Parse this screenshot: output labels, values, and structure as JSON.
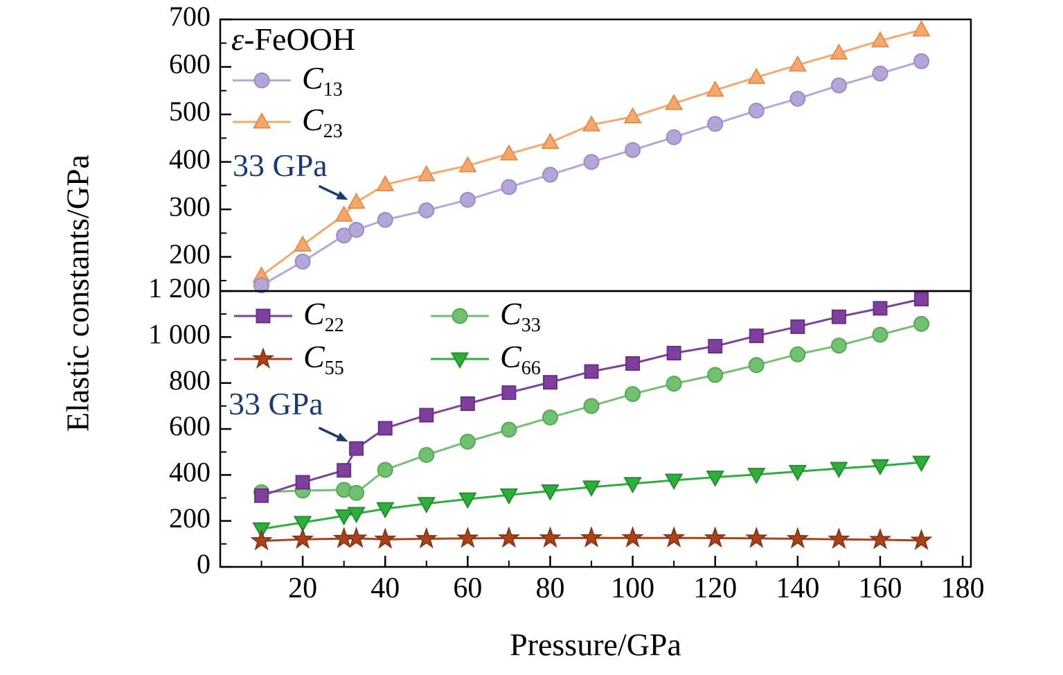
{
  "ylabel": "Elastic constants/GPa",
  "xlabel": "Pressure/GPa",
  "chart_data": [
    {
      "type": "line",
      "panel": "top",
      "title_sym": "ε",
      "title_rest": "-FeOOH",
      "ylim": [
        128,
        700
      ],
      "yticks": [
        200,
        300,
        400,
        500,
        600,
        700
      ],
      "ytick_labels": [
        "200",
        "300",
        "400",
        "500",
        "600",
        "700"
      ],
      "yticks_minor": [
        150,
        250,
        350,
        450,
        550,
        650
      ],
      "x": [
        10,
        20,
        30,
        33,
        40,
        50,
        60,
        70,
        80,
        90,
        100,
        110,
        120,
        130,
        140,
        150,
        160,
        170
      ],
      "series": [
        {
          "name": "C13",
          "sym": "C",
          "sub": "13",
          "marker": "circle",
          "color": "#b4a6d8",
          "edge": "#9b8ac6",
          "values": [
            140,
            190,
            245,
            257,
            278,
            298,
            320,
            347,
            373,
            400,
            425,
            452,
            480,
            508,
            533,
            561,
            586,
            612
          ]
        },
        {
          "name": "C23",
          "sym": "C",
          "sub": "23",
          "marker": "triangle-up",
          "color": "#f6a76e",
          "edge": "#e28f4e",
          "values": [
            160,
            225,
            288,
            315,
            352,
            373,
            392,
            417,
            441,
            478,
            495,
            523,
            551,
            578,
            604,
            629,
            655,
            678
          ]
        }
      ],
      "annotation": {
        "text": "33 GPa",
        "x": 33,
        "y": 320,
        "color": "#1c3a6e"
      }
    },
    {
      "type": "line",
      "panel": "bottom",
      "ylim": [
        0,
        1200
      ],
      "yticks": [
        0,
        200,
        400,
        600,
        800,
        1000,
        1200
      ],
      "ytick_labels": [
        "0",
        "200",
        "400",
        "600",
        "800",
        "1 000",
        "1 200"
      ],
      "yticks_minor": [
        100,
        300,
        500,
        700,
        900,
        1100
      ],
      "x": [
        10,
        20,
        30,
        33,
        40,
        50,
        60,
        70,
        80,
        90,
        100,
        110,
        120,
        130,
        140,
        150,
        160,
        170
      ],
      "xticks": [
        20,
        40,
        60,
        80,
        100,
        120,
        140,
        160,
        180
      ],
      "xtick_labels": [
        "20",
        "40",
        "60",
        "80",
        "100",
        "120",
        "140",
        "160",
        "180"
      ],
      "xticks_minor": [
        10,
        30,
        50,
        70,
        90,
        110,
        130,
        150,
        170
      ],
      "series": [
        {
          "name": "C22",
          "sym": "C",
          "sub": "22",
          "marker": "square",
          "color": "#7e3f9d",
          "edge": "#6a2f87",
          "values": [
            310,
            368,
            420,
            515,
            603,
            660,
            710,
            758,
            803,
            850,
            885,
            930,
            960,
            1005,
            1045,
            1088,
            1125,
            1165
          ]
        },
        {
          "name": "C33",
          "sym": "C",
          "sub": "33",
          "marker": "circle",
          "color": "#72c172",
          "edge": "#57a657",
          "values": [
            325,
            332,
            335,
            322,
            422,
            487,
            545,
            597,
            650,
            700,
            752,
            797,
            835,
            878,
            925,
            963,
            1010,
            1057
          ]
        },
        {
          "name": "C55",
          "sym": "C",
          "sub": "55",
          "marker": "star",
          "color": "#a8431d",
          "edge": "#8a3413",
          "values": [
            113,
            120,
            123,
            124,
            120,
            122,
            124,
            125,
            125,
            126,
            126,
            126,
            125,
            124,
            122,
            120,
            118,
            115
          ]
        },
        {
          "name": "C66",
          "sym": "C",
          "sub": "66",
          "marker": "triangle-down",
          "color": "#2fae3e",
          "edge": "#238c2f",
          "values": [
            165,
            193,
            222,
            232,
            253,
            275,
            295,
            313,
            330,
            347,
            362,
            377,
            390,
            402,
            415,
            428,
            440,
            455
          ]
        }
      ],
      "annotation": {
        "text": "33 GPa",
        "x": 33,
        "y": 545,
        "color": "#1c3a6e"
      }
    }
  ]
}
